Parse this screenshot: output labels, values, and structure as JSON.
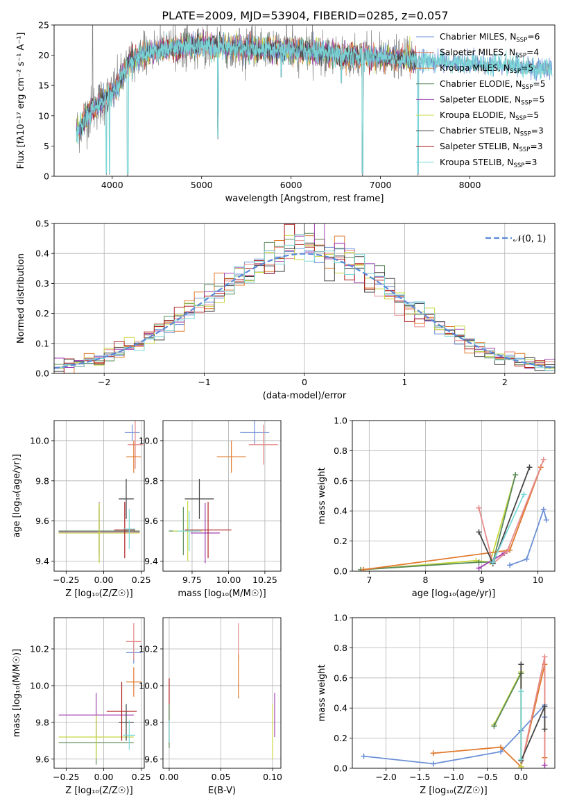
{
  "figure_title": "PLATE=2009, MJD=53904, FIBERID=0285, z=0.057",
  "colors": {
    "Chabrier MILES": "#6b8fd6",
    "Salpeter MILES": "#e68a8a",
    "Kroupa MILES": "#e07a2e",
    "Chabrier ELODIE": "#5a8a5a",
    "Salpeter ELODIE": "#a040b0",
    "Kroupa ELODIE": "#c8d840",
    "Chabrier STELIB": "#444444",
    "Salpeter STELIB": "#b02020",
    "Kroupa STELIB": "#7ad8d8",
    "data": "#808080",
    "gauss": "#5a88d8",
    "grid": "#b0b0b0"
  },
  "chart_data": [
    {
      "type": "line",
      "title": "PLATE=2009, MJD=53904, FIBERID=0285, z=0.057",
      "xlabel": "wavelength [Angstrom, rest frame]",
      "ylabel": "Flux [fλ10⁻¹⁷ erg cm⁻² s⁻¹ A⁻¹]",
      "xlim": [
        3350,
        8950
      ],
      "ylim": [
        0,
        25
      ],
      "xticks": [
        4000,
        5000,
        6000,
        7000,
        8000
      ],
      "yticks": [
        0,
        5,
        10,
        15,
        20,
        25
      ],
      "grid": false,
      "legend_placement": "top-right",
      "legend": [
        {
          "series": "Chabrier MILES",
          "label": "Chabrier MILES, N",
          "sub": "SSP",
          "tail": "=6"
        },
        {
          "series": "Salpeter MILES",
          "label": "Salpeter MILES, N",
          "sub": "SSP",
          "tail": "=4"
        },
        {
          "series": "Kroupa MILES",
          "label": "Kroupa MILES, N",
          "sub": "SSP",
          "tail": "=5"
        },
        {
          "series": "Chabrier ELODIE",
          "label": "Chabrier ELODIE, N",
          "sub": "SSP",
          "tail": "=5"
        },
        {
          "series": "Salpeter ELODIE",
          "label": "Salpeter ELODIE, N",
          "sub": "SSP",
          "tail": "=5"
        },
        {
          "series": "Kroupa ELODIE",
          "label": "Kroupa ELODIE, N",
          "sub": "SSP",
          "tail": "=5"
        },
        {
          "series": "Chabrier STELIB",
          "label": "Chabrier STELIB, N",
          "sub": "SSP",
          "tail": "=3"
        },
        {
          "series": "Salpeter STELIB",
          "label": "Salpeter STELIB, N",
          "sub": "SSP",
          "tail": "=3"
        },
        {
          "series": "Kroupa STELIB",
          "label": "Kroupa STELIB, N",
          "sub": "SSP",
          "tail": "=3"
        }
      ],
      "continuum": {
        "x": [
          3600,
          3700,
          3800,
          3900,
          4000,
          4100,
          4200,
          4400,
          4600,
          4800,
          5000,
          5200,
          5400,
          5600,
          5800,
          6000,
          6200,
          6400,
          6600,
          6800,
          7000,
          7200,
          7400,
          7600,
          7800,
          8000,
          8200,
          8400,
          8600,
          8800,
          8920
        ],
        "y": [
          7.5,
          9.5,
          11.5,
          12.5,
          13.5,
          16.0,
          19.0,
          20.5,
          21.0,
          21.3,
          21.6,
          21.4,
          21.2,
          21.0,
          21.0,
          20.8,
          20.6,
          20.4,
          20.0,
          19.8,
          19.6,
          19.4,
          19.2,
          19.0,
          18.8,
          18.6,
          18.4,
          18.2,
          18.0,
          17.9,
          17.8
        ]
      },
      "features": {
        "deep_lines": [
          {
            "x": 3934,
            "y": 0
          },
          {
            "x": 3969,
            "y": 0
          },
          {
            "x": 4170,
            "y": 0
          },
          {
            "x": 4178,
            "y": 0
          },
          {
            "x": 5183,
            "y": 6
          },
          {
            "x": 5890,
            "y": 16
          },
          {
            "x": 6563,
            "y": 15
          },
          {
            "x": 6800,
            "y": 0
          },
          {
            "x": 7420,
            "y": 0
          }
        ],
        "spikes": [
          {
            "x": 3780,
            "y": 25
          },
          {
            "x": 5060,
            "y": 25
          },
          {
            "x": 5950,
            "y": 25
          }
        ]
      }
    },
    {
      "type": "histogram",
      "xlabel": "(data-model)/error",
      "ylabel": "Normed distribution",
      "xlim": [
        -2.5,
        2.5
      ],
      "ylim": [
        0,
        0.5
      ],
      "xticks": [
        -2,
        -1,
        0,
        1,
        2
      ],
      "xtick_labels": [
        "−2",
        "−1",
        "0",
        "1",
        "2"
      ],
      "yticks": [
        0,
        0.1,
        0.2,
        0.3,
        0.4,
        0.5
      ],
      "ytick_labels": [
        "0.0",
        "0.1",
        "0.2",
        "0.3",
        "0.4",
        "0.5"
      ],
      "grid": true,
      "bin_width": 0.1,
      "bin_start": -2.5,
      "legend_placement": "top-right",
      "legend_label": "𝒩(0, 1)",
      "gaussian": {
        "mean": 0,
        "sigma": 1,
        "style": "dashed"
      }
    },
    {
      "type": "errorbar",
      "xlabel": "Z [log₁₀(Z/Z☉)]",
      "ylabel": "age  [log₁₀(age/yr)]",
      "xlim": [
        -0.33,
        0.27
      ],
      "ylim": [
        9.35,
        10.1
      ],
      "xticks": [
        -0.25,
        0,
        0.25
      ],
      "xtick_labels": [
        "−0.25",
        "0.00",
        "0.25"
      ],
      "yticks": [
        9.4,
        9.6,
        9.8,
        10.0
      ],
      "ytick_labels": [
        "9.4",
        "9.6",
        "9.8",
        "10.0"
      ],
      "grid": true,
      "points": [
        {
          "series": "Chabrier MILES",
          "x": 0.19,
          "xerr": 0.05,
          "y": 10.04,
          "yerr": 0.04
        },
        {
          "series": "Salpeter MILES",
          "x": 0.21,
          "xerr": 0.05,
          "y": 9.98,
          "yerr": 0.12
        },
        {
          "series": "Kroupa MILES",
          "x": 0.2,
          "xerr": 0.05,
          "y": 9.92,
          "yerr": 0.08
        },
        {
          "series": "Chabrier ELODIE",
          "x": -0.03,
          "xerr": 0.27,
          "y": 9.55,
          "yerr": 0.12
        },
        {
          "series": "Salpeter ELODIE",
          "x": -0.03,
          "xerr": 0.27,
          "y": 9.545,
          "yerr": 0.15
        },
        {
          "series": "Kroupa ELODIE",
          "x": -0.03,
          "xerr": 0.27,
          "y": 9.54,
          "yerr": 0.15
        },
        {
          "series": "Chabrier STELIB",
          "x": 0.15,
          "xerr": 0.05,
          "y": 9.71,
          "yerr": 0.1
        },
        {
          "series": "Salpeter STELIB",
          "x": 0.14,
          "xerr": 0.07,
          "y": 9.555,
          "yerr": 0.14
        },
        {
          "series": "Kroupa STELIB",
          "x": 0.17,
          "xerr": 0.04,
          "y": 9.56,
          "yerr": 0.1
        }
      ]
    },
    {
      "type": "errorbar",
      "xlabel": "mass [log₁₀(M/M☉)]",
      "ylabel": "",
      "xlim": [
        9.55,
        10.36
      ],
      "ylim": [
        9.35,
        10.1
      ],
      "xticks": [
        9.75,
        10.0,
        10.25
      ],
      "xtick_labels": [
        "9.75",
        "10.00",
        "10.25"
      ],
      "yticks": [
        9.4,
        9.6,
        9.8,
        10.0
      ],
      "ytick_labels": [
        "9.4",
        "9.6",
        "9.8",
        "10.0"
      ],
      "grid": true,
      "points": [
        {
          "series": "Chabrier MILES",
          "x": 10.18,
          "xerr": 0.1,
          "y": 10.04,
          "yerr": 0.06
        },
        {
          "series": "Salpeter MILES",
          "x": 10.24,
          "xerr": 0.1,
          "y": 9.98,
          "yerr": 0.1
        },
        {
          "series": "Kroupa MILES",
          "x": 10.02,
          "xerr": 0.1,
          "y": 9.92,
          "yerr": 0.08
        },
        {
          "series": "Chabrier ELODIE",
          "x": 9.69,
          "xerr": 0.1,
          "y": 9.55,
          "yerr": 0.12
        },
        {
          "series": "Salpeter ELODIE",
          "x": 9.84,
          "xerr": 0.1,
          "y": 9.54,
          "yerr": 0.15
        },
        {
          "series": "Kroupa ELODIE",
          "x": 9.72,
          "xerr": 0.1,
          "y": 9.55,
          "yerr": 0.15
        },
        {
          "series": "Chabrier STELIB",
          "x": 9.8,
          "xerr": 0.1,
          "y": 9.71,
          "yerr": 0.1
        },
        {
          "series": "Salpeter STELIB",
          "x": 9.86,
          "xerr": 0.16,
          "y": 9.555,
          "yerr": 0.14
        },
        {
          "series": "Kroupa STELIB",
          "x": 9.73,
          "xerr": 0.08,
          "y": 9.55,
          "yerr": 0.1
        }
      ]
    },
    {
      "type": "line",
      "xlabel": "age  [log₁₀(age/yr)]",
      "ylabel": "mass weight",
      "xlim": [
        6.7,
        10.3
      ],
      "ylim": [
        0,
        1
      ],
      "xticks": [
        7,
        8,
        9,
        10
      ],
      "xtick_labels": [
        "7",
        "8",
        "9",
        "10"
      ],
      "yticks": [
        0,
        0.2,
        0.4,
        0.6,
        0.8,
        1.0
      ],
      "ytick_labels": [
        "0.0",
        "0.2",
        "0.4",
        "0.6",
        "0.8",
        "1.0"
      ],
      "grid": true,
      "marker": "+",
      "series": [
        {
          "name": "Kroupa ELODIE",
          "x": [
            6.9,
            8.9,
            9.15,
            9.6
          ],
          "y": [
            0.01,
            0.07,
            0.06,
            0.64
          ]
        },
        {
          "name": "Chabrier ELODIE",
          "x": [
            6.85,
            8.95,
            9.2,
            9.6
          ],
          "y": [
            0.01,
            0.06,
            0.06,
            0.64
          ]
        },
        {
          "name": "Salpeter ELODIE",
          "x": [
            8.95,
            9.4
          ],
          "y": [
            0.02,
            0.12
          ]
        },
        {
          "name": "Kroupa MILES",
          "x": [
            6.9,
            9.5,
            10.05
          ],
          "y": [
            0.01,
            0.14,
            0.69
          ]
        },
        {
          "name": "Chabrier MILES",
          "x": [
            9.5,
            9.8,
            10.1,
            10.15
          ],
          "y": [
            0.04,
            0.08,
            0.41,
            0.34
          ]
        },
        {
          "name": "Salpeter MILES",
          "x": [
            8.95,
            9.2,
            9.45,
            10.1
          ],
          "y": [
            0.42,
            0.05,
            0.13,
            0.74
          ]
        },
        {
          "name": "Chabrier STELIB",
          "x": [
            8.95,
            9.2,
            9.85
          ],
          "y": [
            0.26,
            0.05,
            0.69
          ]
        },
        {
          "name": "Salpeter STELIB",
          "x": [],
          "y": []
        },
        {
          "name": "Kroupa STELIB",
          "x": [
            9.2,
            9.75
          ],
          "y": [
            0.06,
            0.51
          ]
        }
      ]
    },
    {
      "type": "errorbar",
      "xlabel": "Z [log₁₀(Z/Z☉)]",
      "ylabel": "mass  [log₁₀(M/M☉)]",
      "xlim": [
        -0.33,
        0.27
      ],
      "ylim": [
        9.55,
        10.37
      ],
      "xticks": [
        -0.25,
        0,
        0.25
      ],
      "xtick_labels": [
        "−0.25",
        "0.00",
        "0.25"
      ],
      "yticks": [
        9.6,
        9.8,
        10.0,
        10.2
      ],
      "ytick_labels": [
        "9.6",
        "9.8",
        "10.0",
        "10.2"
      ],
      "grid": true,
      "points": [
        {
          "series": "Chabrier MILES",
          "x": 0.2,
          "xerr": 0.05,
          "y": 10.18,
          "yerr": 0.06
        },
        {
          "series": "Salpeter MILES",
          "x": 0.2,
          "xerr": 0.05,
          "y": 10.24,
          "yerr": 0.1
        },
        {
          "series": "Kroupa MILES",
          "x": 0.2,
          "xerr": 0.05,
          "y": 10.02,
          "yerr": 0.08
        },
        {
          "series": "Chabrier ELODIE",
          "x": -0.05,
          "xerr": 0.25,
          "y": 9.69,
          "yerr": 0.12
        },
        {
          "series": "Salpeter ELODIE",
          "x": -0.05,
          "xerr": 0.25,
          "y": 9.84,
          "yerr": 0.12
        },
        {
          "series": "Kroupa ELODIE",
          "x": -0.05,
          "xerr": 0.25,
          "y": 9.72,
          "yerr": 0.12
        },
        {
          "series": "Chabrier STELIB",
          "x": 0.15,
          "xerr": 0.05,
          "y": 9.8,
          "yerr": 0.1
        },
        {
          "series": "Salpeter STELIB",
          "x": 0.12,
          "xerr": 0.1,
          "y": 9.86,
          "yerr": 0.16
        },
        {
          "series": "Kroupa STELIB",
          "x": 0.17,
          "xerr": 0.04,
          "y": 9.73,
          "yerr": 0.08
        }
      ]
    },
    {
      "type": "errorbar",
      "xlabel": "E(B-V)",
      "ylabel": "",
      "xlim": [
        -0.006,
        0.108
      ],
      "ylim": [
        9.55,
        10.37
      ],
      "xticks": [
        0,
        0.05,
        0.1
      ],
      "xtick_labels": [
        "0.00",
        "0.05",
        "0.10"
      ],
      "yticks": [
        9.6,
        9.8,
        10.0,
        10.2
      ],
      "ytick_labels": [
        "9.6",
        "9.8",
        "10.0",
        "10.2"
      ],
      "grid": true,
      "points": [
        {
          "series": "Salpeter STELIB",
          "x": 0.0,
          "xerr": 0,
          "y": 9.86,
          "yerr": 0.18
        },
        {
          "series": "Chabrier ELODIE",
          "x": 0.0,
          "xerr": 0,
          "y": 9.78,
          "yerr": 0.12
        },
        {
          "series": "Kroupa STELIB",
          "x": 0.0,
          "xerr": 0,
          "y": 9.75,
          "yerr": 0.06
        },
        {
          "series": "Salpeter MILES",
          "x": 0.067,
          "xerr": 0,
          "y": 10.24,
          "yerr": 0.1
        },
        {
          "series": "Kroupa MILES",
          "x": 0.067,
          "xerr": 0,
          "y": 10.05,
          "yerr": 0.12
        },
        {
          "series": "Salpeter ELODIE",
          "x": 0.102,
          "xerr": 0,
          "y": 9.84,
          "yerr": 0.12
        },
        {
          "series": "Kroupa ELODIE",
          "x": 0.1,
          "xerr": 0,
          "y": 9.75,
          "yerr": 0.15
        }
      ]
    },
    {
      "type": "line",
      "xlabel": "Z [log₁₀(Z/Z☉)]",
      "ylabel": "mass weight",
      "xlim": [
        -2.5,
        0.5
      ],
      "ylim": [
        0,
        1
      ],
      "xticks": [
        -2,
        -1.5,
        -1,
        -0.5,
        0
      ],
      "xtick_labels": [
        "−2.0",
        "−1.5",
        "−1.0",
        "−0.5",
        "0.0"
      ],
      "yticks": [
        0,
        0.2,
        0.4,
        0.6,
        0.8,
        1.0
      ],
      "ytick_labels": [
        "0.0",
        "0.2",
        "0.4",
        "0.6",
        "0.8",
        "1.0"
      ],
      "grid": true,
      "marker": "+",
      "series": [
        {
          "name": "Chabrier MILES",
          "x": [
            -2.33,
            -1.3,
            -0.3,
            0.0,
            0.35,
            0.35
          ],
          "y": [
            0.08,
            0.03,
            0.11,
            0.25,
            0.42,
            0.34
          ]
        },
        {
          "name": "Kroupa MILES",
          "x": [
            -1.3,
            -0.3,
            0.0,
            0.35,
            0.35
          ],
          "y": [
            0.1,
            0.14,
            0.01,
            0.69,
            0.07
          ]
        },
        {
          "name": "Salpeter MILES",
          "x": [
            0.0,
            0.35,
            0.35
          ],
          "y": [
            0.01,
            0.74,
            0.02
          ]
        },
        {
          "name": "Kroupa ELODIE",
          "x": [
            -0.4,
            0.0,
            0.0
          ],
          "y": [
            0.29,
            0.64,
            0.01
          ]
        },
        {
          "name": "Chabrier ELODIE",
          "x": [
            -0.4,
            0.0
          ],
          "y": [
            0.28,
            0.63
          ]
        },
        {
          "name": "Chabrier STELIB",
          "x": [
            0.0,
            0.0,
            0.35,
            0.35
          ],
          "y": [
            0.69,
            0.05,
            0.41,
            0.26
          ]
        },
        {
          "name": "Kroupa STELIB",
          "x": [
            0.0,
            0.0
          ],
          "y": [
            0.51,
            0.06
          ]
        },
        {
          "name": "Salpeter ELODIE",
          "x": [
            0.35
          ],
          "y": [
            0.02
          ]
        },
        {
          "name": "Salpeter STELIB",
          "x": [],
          "y": []
        }
      ]
    }
  ]
}
